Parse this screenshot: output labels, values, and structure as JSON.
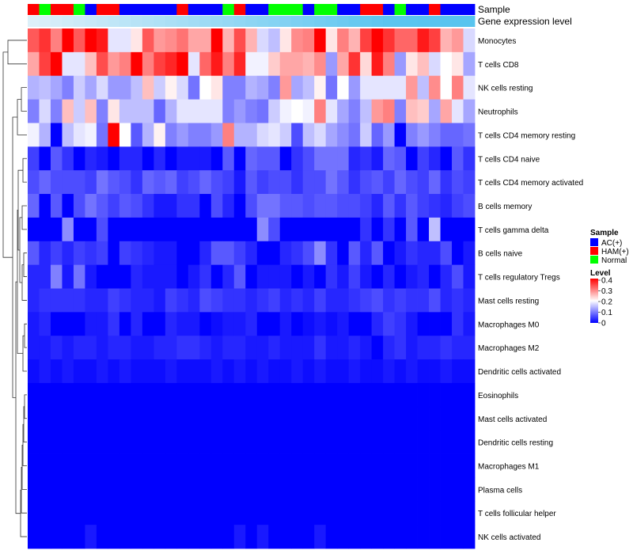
{
  "chart_data": {
    "type": "heatmap",
    "title": "",
    "annotation_rows": [
      "Sample",
      "Gene expression level"
    ],
    "rows": [
      "Monocytes",
      "T cells CD8",
      "NK cells resting",
      "Neutrophils",
      "T cells CD4 memory resting",
      "T cells CD4 naive",
      "T cells CD4 memory activated",
      "B cells memory",
      "T cells gamma delta",
      "B cells naive",
      "T cells regulatory  Tregs",
      "Mast cells resting",
      "Macrophages M0",
      "Macrophages M2",
      "Dendritic cells activated",
      "Eosinophils",
      "Mast cells activated",
      "Dendritic cells resting",
      "Macrophages M1",
      "Plasma cells",
      "T cells follicular helper",
      "NK cells activated"
    ],
    "sample_groups": [
      "HAM(+)",
      "Normal",
      "HAM(+)",
      "HAM(+)",
      "Normal",
      "AC(+)",
      "HAM(+)",
      "HAM(+)",
      "AC(+)",
      "AC(+)",
      "AC(+)",
      "AC(+)",
      "AC(+)",
      "HAM(+)",
      "AC(+)",
      "AC(+)",
      "AC(+)",
      "Normal",
      "HAM(+)",
      "AC(+)",
      "AC(+)",
      "Normal",
      "Normal",
      "Normal",
      "AC(+)",
      "Normal",
      "Normal",
      "AC(+)",
      "AC(+)",
      "HAM(+)",
      "HAM(+)",
      "AC(+)",
      "Normal",
      "AC(+)",
      "AC(+)",
      "HAM(+)",
      "AC(+)",
      "AC(+)",
      "AC(+)"
    ],
    "gene_expression_levels": [
      0.05,
      0.08,
      0.11,
      0.14,
      0.17,
      0.2,
      0.23,
      0.26,
      0.29,
      0.32,
      0.35,
      0.38,
      0.41,
      0.44,
      0.47,
      0.5,
      0.53,
      0.56,
      0.59,
      0.62,
      0.65,
      0.68,
      0.71,
      0.74,
      0.77,
      0.8,
      0.83,
      0.86,
      0.89,
      0.92,
      0.95,
      0.97,
      0.98,
      0.985,
      0.99,
      0.993,
      0.996,
      0.998,
      1.0
    ],
    "values": [
      [
        0.33,
        0.36,
        0.3,
        0.4,
        0.33,
        0.4,
        0.38,
        0.18,
        0.18,
        0.22,
        0.33,
        0.28,
        0.29,
        0.31,
        0.27,
        0.27,
        0.4,
        0.26,
        0.34,
        0.26,
        0.17,
        0.15,
        0.22,
        0.29,
        0.3,
        0.4,
        0.22,
        0.3,
        0.26,
        0.35,
        0.4,
        0.36,
        0.32,
        0.32,
        0.38,
        0.35,
        0.26,
        0.28,
        0.17
      ],
      [
        0.27,
        0.35,
        0.4,
        0.18,
        0.18,
        0.25,
        0.34,
        0.28,
        0.3,
        0.4,
        0.3,
        0.35,
        0.37,
        0.4,
        0.18,
        0.32,
        0.38,
        0.3,
        0.37,
        0.19,
        0.19,
        0.24,
        0.27,
        0.27,
        0.26,
        0.29,
        0.12,
        0.27,
        0.36,
        0.23,
        0.38,
        0.3,
        0.12,
        0.22,
        0.25,
        0.17,
        0.2,
        0.22,
        0.13
      ],
      [
        0.14,
        0.15,
        0.13,
        0.1,
        0.16,
        0.13,
        0.17,
        0.12,
        0.12,
        0.15,
        0.25,
        0.16,
        0.21,
        0.17,
        0.09,
        0.2,
        0.22,
        0.1,
        0.1,
        0.14,
        0.13,
        0.1,
        0.28,
        0.13,
        0.15,
        0.21,
        0.09,
        0.2,
        0.12,
        0.18,
        0.18,
        0.18,
        0.18,
        0.28,
        0.15,
        0.29,
        0.2,
        0.3,
        0.18
      ],
      [
        0.1,
        0.17,
        0.1,
        0.25,
        0.16,
        0.25,
        0.1,
        0.22,
        0.15,
        0.15,
        0.15,
        0.08,
        0.14,
        0.18,
        0.18,
        0.18,
        0.18,
        0.1,
        0.12,
        0.1,
        0.09,
        0.16,
        0.19,
        0.2,
        0.19,
        0.3,
        0.18,
        0.13,
        0.1,
        0.15,
        0.28,
        0.3,
        0.1,
        0.25,
        0.24,
        0.13,
        0.27,
        0.18,
        0.13
      ],
      [
        0.19,
        0.14,
        0.0,
        0.15,
        0.18,
        0.19,
        0.09,
        0.4,
        0.2,
        0.07,
        0.14,
        0.21,
        0.1,
        0.12,
        0.1,
        0.1,
        0.12,
        0.3,
        0.14,
        0.14,
        0.17,
        0.18,
        0.16,
        0.06,
        0.15,
        0.17,
        0.13,
        0.11,
        0.09,
        0.16,
        0.08,
        0.12,
        0.0,
        0.1,
        0.12,
        0.1,
        0.08,
        0.08,
        0.09
      ],
      [
        0.05,
        0.0,
        0.07,
        0.04,
        0.0,
        0.03,
        0.02,
        0.0,
        0.03,
        0.03,
        0.0,
        0.03,
        0.0,
        0.02,
        0.02,
        0.02,
        0.0,
        0.07,
        0.0,
        0.08,
        0.07,
        0.07,
        0.0,
        0.04,
        0.06,
        0.09,
        0.09,
        0.09,
        0.03,
        0.04,
        0.02,
        0.08,
        0.07,
        0.0,
        0.05,
        0.03,
        0.0,
        0.07,
        0.04
      ],
      [
        0.06,
        0.08,
        0.06,
        0.06,
        0.06,
        0.05,
        0.09,
        0.07,
        0.06,
        0.04,
        0.08,
        0.07,
        0.08,
        0.05,
        0.06,
        0.08,
        0.06,
        0.05,
        0.02,
        0.07,
        0.05,
        0.06,
        0.06,
        0.04,
        0.06,
        0.06,
        0.09,
        0.07,
        0.04,
        0.06,
        0.07,
        0.05,
        0.08,
        0.06,
        0.05,
        0.08,
        0.04,
        0.06,
        0.05
      ],
      [
        0.08,
        0.0,
        0.07,
        0.0,
        0.06,
        0.09,
        0.07,
        0.05,
        0.07,
        0.06,
        0.04,
        0.02,
        0.02,
        0.04,
        0.04,
        0.0,
        0.06,
        0.03,
        0.0,
        0.06,
        0.09,
        0.09,
        0.07,
        0.07,
        0.06,
        0.07,
        0.07,
        0.06,
        0.06,
        0.05,
        0.03,
        0.07,
        0.04,
        0.07,
        0.05,
        0.04,
        0.03,
        0.05,
        0.06
      ],
      [
        0.0,
        0.0,
        0.0,
        0.11,
        0.0,
        0.0,
        0.06,
        0.0,
        0.0,
        0.0,
        0.0,
        0.0,
        0.0,
        0.0,
        0.0,
        0.0,
        0.0,
        0.0,
        0.0,
        0.0,
        0.11,
        0.06,
        0.0,
        0.0,
        0.0,
        0.0,
        0.0,
        0.0,
        0.0,
        0.04,
        0.0,
        0.04,
        0.0,
        0.07,
        0.0,
        0.15,
        0.0,
        0.0,
        0.0
      ],
      [
        0.07,
        0.03,
        0.05,
        0.03,
        0.05,
        0.04,
        0.05,
        0.0,
        0.05,
        0.04,
        0.03,
        0.02,
        0.02,
        0.0,
        0.0,
        0.03,
        0.07,
        0.07,
        0.05,
        0.03,
        0.0,
        0.0,
        0.03,
        0.04,
        0.06,
        0.11,
        0.04,
        0.0,
        0.07,
        0.03,
        0.07,
        0.0,
        0.02,
        0.04,
        0.03,
        0.03,
        0.06,
        0.0,
        0.02
      ],
      [
        0.03,
        0.03,
        0.1,
        0.02,
        0.09,
        0.02,
        0.0,
        0.0,
        0.0,
        0.03,
        0.02,
        0.02,
        0.02,
        0.0,
        0.02,
        0.04,
        0.0,
        0.03,
        0.07,
        0.0,
        0.02,
        0.02,
        0.02,
        0.0,
        0.02,
        0.0,
        0.04,
        0.02,
        0.05,
        0.02,
        0.0,
        0.03,
        0.0,
        0.02,
        0.03,
        0.0,
        0.03,
        0.06,
        0.02
      ],
      [
        0.03,
        0.04,
        0.04,
        0.04,
        0.04,
        0.03,
        0.03,
        0.05,
        0.04,
        0.03,
        0.03,
        0.02,
        0.05,
        0.04,
        0.03,
        0.06,
        0.05,
        0.04,
        0.04,
        0.03,
        0.04,
        0.05,
        0.03,
        0.04,
        0.03,
        0.05,
        0.03,
        0.03,
        0.04,
        0.05,
        0.06,
        0.04,
        0.05,
        0.04,
        0.04,
        0.06,
        0.03,
        0.04,
        0.03
      ],
      [
        0.02,
        0.03,
        0.0,
        0.0,
        0.0,
        0.02,
        0.02,
        0.04,
        0.0,
        0.03,
        0.0,
        0.0,
        0.03,
        0.02,
        0.02,
        0.0,
        0.01,
        0.02,
        0.02,
        0.03,
        0.0,
        0.0,
        0.02,
        0.0,
        0.01,
        0.02,
        0.01,
        0.02,
        0.0,
        0.0,
        0.03,
        0.05,
        0.04,
        0.02,
        0.0,
        0.0,
        0.0,
        0.04,
        0.02
      ],
      [
        0.02,
        0.02,
        0.03,
        0.02,
        0.03,
        0.03,
        0.02,
        0.03,
        0.03,
        0.02,
        0.02,
        0.03,
        0.03,
        0.04,
        0.04,
        0.03,
        0.02,
        0.03,
        0.03,
        0.02,
        0.02,
        0.03,
        0.02,
        0.02,
        0.02,
        0.04,
        0.02,
        0.02,
        0.03,
        0.02,
        0.0,
        0.03,
        0.04,
        0.02,
        0.03,
        0.03,
        0.04,
        0.03,
        0.03
      ],
      [
        0.01,
        0.02,
        0.01,
        0.02,
        0.01,
        0.01,
        0.02,
        0.01,
        0.02,
        0.01,
        0.01,
        0.01,
        0.02,
        0.01,
        0.01,
        0.01,
        0.02,
        0.01,
        0.02,
        0.01,
        0.02,
        0.01,
        0.01,
        0.02,
        0.01,
        0.02,
        0.01,
        0.01,
        0.02,
        0.01,
        0.01,
        0.02,
        0.01,
        0.02,
        0.01,
        0.01,
        0.02,
        0.01,
        0.01
      ],
      [
        0.0,
        0.0,
        0.0,
        0.0,
        0.0,
        0.0,
        0.0,
        0.0,
        0.0,
        0.0,
        0.0,
        0.0,
        0.0,
        0.0,
        0.0,
        0.0,
        0.0,
        0.0,
        0.0,
        0.0,
        0.0,
        0.0,
        0.0,
        0.0,
        0.0,
        0.0,
        0.0,
        0.0,
        0.0,
        0.0,
        0.0,
        0.0,
        0.0,
        0.0,
        0.0,
        0.0,
        0.0,
        0.0,
        0.0
      ],
      [
        0.0,
        0.0,
        0.0,
        0.0,
        0.0,
        0.0,
        0.0,
        0.0,
        0.0,
        0.0,
        0.0,
        0.0,
        0.0,
        0.0,
        0.0,
        0.0,
        0.0,
        0.0,
        0.0,
        0.0,
        0.0,
        0.0,
        0.0,
        0.0,
        0.0,
        0.0,
        0.0,
        0.0,
        0.0,
        0.0,
        0.0,
        0.0,
        0.0,
        0.0,
        0.0,
        0.0,
        0.0,
        0.0,
        0.0
      ],
      [
        0.0,
        0.0,
        0.0,
        0.0,
        0.0,
        0.0,
        0.0,
        0.0,
        0.0,
        0.0,
        0.0,
        0.0,
        0.0,
        0.0,
        0.0,
        0.0,
        0.0,
        0.0,
        0.0,
        0.0,
        0.0,
        0.0,
        0.0,
        0.0,
        0.0,
        0.0,
        0.0,
        0.0,
        0.0,
        0.0,
        0.0,
        0.0,
        0.0,
        0.0,
        0.0,
        0.0,
        0.0,
        0.0,
        0.0
      ],
      [
        0.0,
        0.0,
        0.0,
        0.0,
        0.0,
        0.0,
        0.0,
        0.0,
        0.0,
        0.0,
        0.0,
        0.0,
        0.0,
        0.0,
        0.0,
        0.0,
        0.0,
        0.0,
        0.0,
        0.0,
        0.0,
        0.0,
        0.0,
        0.0,
        0.0,
        0.0,
        0.0,
        0.0,
        0.0,
        0.0,
        0.0,
        0.0,
        0.0,
        0.0,
        0.0,
        0.0,
        0.0,
        0.0,
        0.0
      ],
      [
        0.0,
        0.0,
        0.0,
        0.0,
        0.0,
        0.0,
        0.0,
        0.0,
        0.0,
        0.0,
        0.0,
        0.0,
        0.0,
        0.0,
        0.0,
        0.0,
        0.0,
        0.0,
        0.0,
        0.0,
        0.0,
        0.0,
        0.0,
        0.0,
        0.0,
        0.0,
        0.0,
        0.0,
        0.0,
        0.0,
        0.0,
        0.0,
        0.0,
        0.0,
        0.0,
        0.0,
        0.0,
        0.0,
        0.0
      ],
      [
        0.0,
        0.0,
        0.0,
        0.0,
        0.0,
        0.0,
        0.0,
        0.0,
        0.0,
        0.0,
        0.0,
        0.0,
        0.0,
        0.0,
        0.0,
        0.0,
        0.0,
        0.0,
        0.0,
        0.0,
        0.0,
        0.0,
        0.0,
        0.0,
        0.0,
        0.0,
        0.0,
        0.0,
        0.0,
        0.0,
        0.0,
        0.0,
        0.0,
        0.0,
        0.0,
        0.0,
        0.0,
        0.0,
        0.0
      ],
      [
        0.0,
        0.0,
        0.0,
        0.0,
        0.0,
        0.02,
        0.0,
        0.0,
        0.0,
        0.0,
        0.0,
        0.0,
        0.0,
        0.0,
        0.0,
        0.0,
        0.0,
        0.0,
        0.02,
        0.0,
        0.02,
        0.0,
        0.0,
        0.0,
        0.0,
        0.02,
        0.0,
        0.0,
        0.0,
        0.0,
        0.0,
        0.0,
        0.0,
        0.0,
        0.0,
        0.0,
        0.0,
        0.0,
        0.0
      ]
    ],
    "legend": {
      "sample": {
        "title": "Sample",
        "entries": [
          {
            "label": "AC(+)",
            "color": "#0000ff"
          },
          {
            "label": "HAM(+)",
            "color": "#ff0000"
          },
          {
            "label": "Normal",
            "color": "#00ff00"
          }
        ]
      },
      "level": {
        "title": "Level",
        "ticks": [
          "0.4",
          "0.3",
          "0.2",
          "0.1",
          "0"
        ],
        "range": [
          0,
          0.4
        ],
        "colors": {
          "low": "#0000ff",
          "mid": "#ffffff",
          "high": "#ff0000"
        }
      }
    },
    "annotation_colors": {
      "expr_low": "#e4f2fa",
      "expr_high": "#58c4ef"
    }
  }
}
